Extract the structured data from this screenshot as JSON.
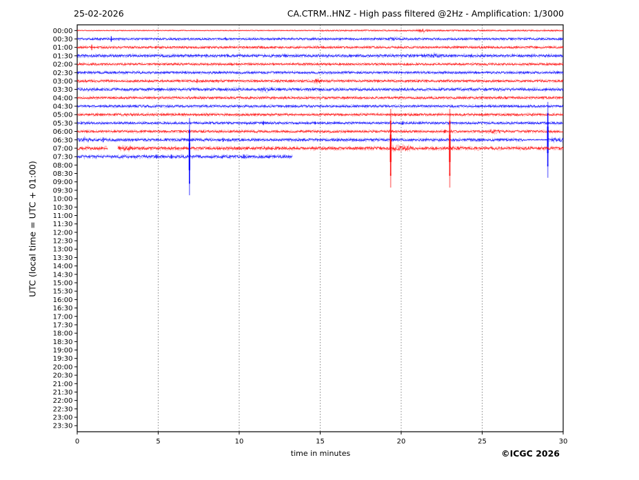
{
  "header": {
    "date": "25-02-2026",
    "title": "CA.CTRM..HNZ - High pass filtered @2Hz - Amplification: 1/3000"
  },
  "footer": {
    "copyright": "©ICGC 2026"
  },
  "chart_data": {
    "type": "line",
    "subtype": "helicorder-drum-plot",
    "title": "CA.CTRM..HNZ - High pass filtered @2Hz - Amplification: 1/3000",
    "date": "25-02-2026",
    "xlabel": "time in minutes",
    "ylabel": "UTC (local time = UTC + 01:00)",
    "x_range": [
      0,
      30
    ],
    "x_ticks": [
      0,
      5,
      10,
      15,
      20,
      25,
      30
    ],
    "grid_x": [
      5,
      10,
      15,
      20,
      25
    ],
    "grid_on": true,
    "colors": {
      "even_trace": "#ff0000",
      "odd_trace": "#0000ff",
      "grid": "#555555",
      "axis": "#000000"
    },
    "rows": [
      {
        "label": "00:00",
        "color": "red",
        "amp": 0.5,
        "events": [
          {
            "kind": "rough",
            "t0": 15,
            "t1": 30,
            "amp": 0.8
          },
          {
            "kind": "burst",
            "t": 21.4,
            "w": 1.2,
            "amp": 2.2
          }
        ]
      },
      {
        "label": "00:30",
        "color": "blue",
        "amp": 1.3,
        "events": [
          {
            "kind": "blip",
            "t": 2.1,
            "h": 4
          },
          {
            "kind": "burst",
            "t": 19.6,
            "w": 1.4,
            "amp": 2.2
          }
        ]
      },
      {
        "label": "01:00",
        "color": "red",
        "amp": 1.3,
        "events": [
          {
            "kind": "blip",
            "t": 0.9,
            "h": 4
          }
        ]
      },
      {
        "label": "01:30",
        "color": "blue",
        "amp": 1.6,
        "events": [
          {
            "kind": "burst",
            "t": 22.0,
            "w": 1.6,
            "amp": 2.6
          }
        ]
      },
      {
        "label": "02:00",
        "color": "red",
        "amp": 1.3,
        "events": []
      },
      {
        "label": "02:30",
        "color": "blue",
        "amp": 1.4,
        "events": []
      },
      {
        "label": "03:00",
        "color": "red",
        "amp": 1.4,
        "events": [
          {
            "kind": "blip",
            "t": 7.4,
            "h": 3
          },
          {
            "kind": "burst",
            "t": 14.8,
            "w": 0.8,
            "amp": 2.8
          }
        ]
      },
      {
        "label": "03:30",
        "color": "blue",
        "amp": 1.6,
        "events": [
          {
            "kind": "burst",
            "t": 11.7,
            "w": 0.9,
            "amp": 2.8
          }
        ]
      },
      {
        "label": "04:00",
        "color": "red",
        "amp": 1.4,
        "events": []
      },
      {
        "label": "04:30",
        "color": "blue",
        "amp": 1.4,
        "events": []
      },
      {
        "label": "05:00",
        "color": "red",
        "amp": 1.4,
        "events": []
      },
      {
        "label": "05:30",
        "color": "blue",
        "amp": 1.4,
        "events": [
          {
            "kind": "blip",
            "t": 11.5,
            "h": 3
          },
          {
            "kind": "blip",
            "t": 14.7,
            "h": 2
          },
          {
            "kind": "blip",
            "t": 20.1,
            "h": 2.5
          }
        ]
      },
      {
        "label": "06:00",
        "color": "red",
        "amp": 1.4,
        "events": [
          {
            "kind": "blip",
            "t": 22.7,
            "h": 2.5
          },
          {
            "kind": "burst",
            "t": 25.7,
            "w": 0.9,
            "amp": 2.8
          }
        ]
      },
      {
        "label": "06:30",
        "color": "blue",
        "amp": 1.6,
        "events": [
          {
            "kind": "burst",
            "t": 0.4,
            "w": 0.8,
            "amp": 3.5
          },
          {
            "kind": "blip",
            "t": 1.6,
            "h": 3.5
          },
          {
            "kind": "blip",
            "t": 9.0,
            "h": 3
          },
          {
            "kind": "rough",
            "t0": 27.5,
            "t1": 29.0,
            "amp": 0.7
          },
          {
            "kind": "spike",
            "t": 29.05,
            "up": 55,
            "down": 55
          },
          {
            "kind": "rough",
            "t0": 29.15,
            "t1": 30,
            "amp": 2.6
          }
        ]
      },
      {
        "label": "07:00",
        "color": "red",
        "amp": 1.8,
        "events": [
          {
            "kind": "gap",
            "t0": 1.9,
            "t1": 2.5
          },
          {
            "kind": "rough",
            "t0": 2.5,
            "t1": 3.3,
            "amp": 2.8
          },
          {
            "kind": "spike",
            "t": 19.35,
            "up": 57,
            "down": 57
          },
          {
            "kind": "rough",
            "t0": 19.45,
            "t1": 20.7,
            "amp": 3.2
          },
          {
            "kind": "spike",
            "t": 23.0,
            "up": 57,
            "down": 57
          },
          {
            "kind": "rough",
            "t0": 23.1,
            "t1": 23.7,
            "amp": 2.4
          }
        ]
      },
      {
        "label": "07:30",
        "color": "blue",
        "amp": 1.8,
        "t_end": 13.3,
        "events": [
          {
            "kind": "blip",
            "t": 4.9,
            "h": 3
          },
          {
            "kind": "blip",
            "t": 5.8,
            "h": 3
          },
          {
            "kind": "spike",
            "t": 6.93,
            "up": 56,
            "down": 56
          },
          {
            "kind": "blip",
            "t": 10.3,
            "h": 3
          }
        ]
      },
      {
        "label": "08:00",
        "color": null
      },
      {
        "label": "08:30",
        "color": null
      },
      {
        "label": "09:00",
        "color": null
      },
      {
        "label": "09:30",
        "color": null
      },
      {
        "label": "10:00",
        "color": null
      },
      {
        "label": "10:30",
        "color": null
      },
      {
        "label": "11:00",
        "color": null
      },
      {
        "label": "11:30",
        "color": null
      },
      {
        "label": "12:00",
        "color": null
      },
      {
        "label": "12:30",
        "color": null
      },
      {
        "label": "13:00",
        "color": null
      },
      {
        "label": "13:30",
        "color": null
      },
      {
        "label": "14:00",
        "color": null
      },
      {
        "label": "14:30",
        "color": null
      },
      {
        "label": "15:00",
        "color": null
      },
      {
        "label": "15:30",
        "color": null
      },
      {
        "label": "16:00",
        "color": null
      },
      {
        "label": "16:30",
        "color": null
      },
      {
        "label": "17:00",
        "color": null
      },
      {
        "label": "17:30",
        "color": null
      },
      {
        "label": "18:00",
        "color": null
      },
      {
        "label": "18:30",
        "color": null
      },
      {
        "label": "19:00",
        "color": null
      },
      {
        "label": "19:30",
        "color": null
      },
      {
        "label": "20:00",
        "color": null
      },
      {
        "label": "20:30",
        "color": null
      },
      {
        "label": "21:00",
        "color": null
      },
      {
        "label": "21:30",
        "color": null
      },
      {
        "label": "22:00",
        "color": null
      },
      {
        "label": "22:30",
        "color": null
      },
      {
        "label": "23:00",
        "color": null
      },
      {
        "label": "23:30",
        "color": null
      }
    ]
  }
}
